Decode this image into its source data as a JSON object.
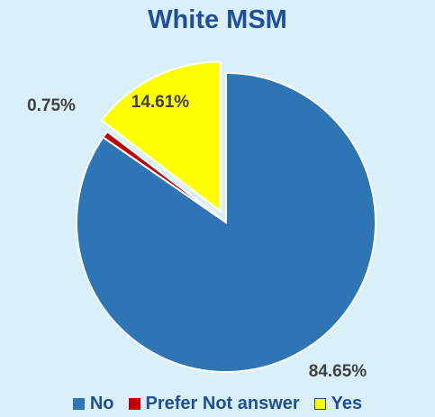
{
  "chart_data": {
    "type": "pie",
    "title": "White MSM",
    "categories": [
      "No",
      "Prefer Not answer",
      "Yes"
    ],
    "values": [
      84.65,
      0.75,
      14.61
    ],
    "labels": [
      "84.65%",
      "0.75%",
      "14.61%"
    ],
    "colors": [
      "#2e75b6",
      "#c00000",
      "#ffff00"
    ],
    "exploded": [
      "Yes"
    ],
    "legend_position": "bottom"
  }
}
